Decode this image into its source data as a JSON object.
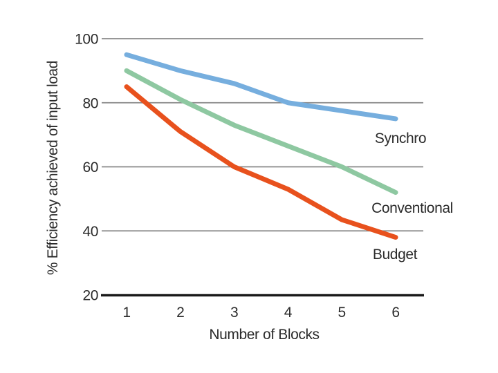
{
  "chart_data": {
    "type": "line",
    "title": "",
    "xlabel": "Number of Blocks",
    "ylabel": "% Efficiency achieved of input load",
    "x": [
      1,
      2,
      3,
      4,
      5,
      6
    ],
    "xticks": [
      1,
      2,
      3,
      4,
      5,
      6
    ],
    "yticks": [
      100,
      80,
      60,
      40,
      20
    ],
    "xlim": [
      1,
      6
    ],
    "ylim": [
      20,
      100
    ],
    "grid": "horizontal-gridlines-on",
    "legend_position": "inline-labels-right-of-lines",
    "series": [
      {
        "name": "Synchro",
        "color": "#76AEDE",
        "values": [
          95,
          90,
          86,
          80,
          77.5,
          75
        ]
      },
      {
        "name": "Conventional",
        "color": "#8EC8A1",
        "values": [
          90,
          81,
          73,
          66.5,
          60,
          52
        ]
      },
      {
        "name": "Budget",
        "color": "#E8511D",
        "values": [
          85,
          71,
          60,
          53,
          43.5,
          38
        ]
      }
    ]
  },
  "colors": {
    "background": "#FFFFFF",
    "gridline": "#888888",
    "axis": "#1A1A1A",
    "text": "#2B2B2B"
  }
}
